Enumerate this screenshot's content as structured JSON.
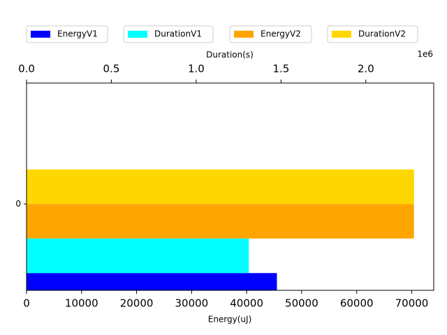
{
  "chart_data": {
    "type": "barh",
    "categories": [
      "0"
    ],
    "xlabel": "Energy(uJ)",
    "x2label": "Duration(s)",
    "x2_offset_label": "1e6",
    "series": [
      {
        "name": "EnergyV1",
        "color": "#0000ff",
        "values": [
          45500
        ]
      },
      {
        "name": "DurationV1",
        "color": "#00ffff",
        "values": [
          1310000
        ],
        "axis": "x2"
      },
      {
        "name": "EnergyV2",
        "color": "#ffa500",
        "values": [
          70400
        ]
      },
      {
        "name": "DurationV2",
        "color": "#ffd700",
        "values": [
          2284000
        ],
        "axis": "x2"
      }
    ],
    "xlim": [
      0,
      74000
    ],
    "xticks": [
      0,
      10000,
      20000,
      30000,
      40000,
      50000,
      60000,
      70000
    ],
    "x2lim": [
      0,
      2400000
    ],
    "x2ticks": [
      {
        "value": 0,
        "label": "0.0"
      },
      {
        "value": 500000,
        "label": "0.5"
      },
      {
        "value": 1000000,
        "label": "1.0"
      },
      {
        "value": 1500000,
        "label": "1.5"
      },
      {
        "value": 2000000,
        "label": "2.0"
      }
    ],
    "ylim": [
      -0.5,
      0.7
    ],
    "legend": "top"
  }
}
